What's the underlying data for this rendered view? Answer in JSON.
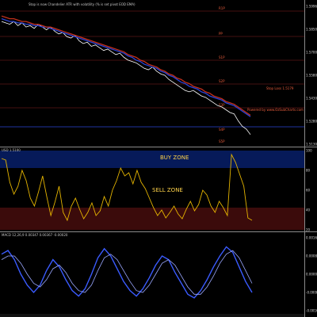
{
  "colors": {
    "background": "#000000",
    "price_black_line": "#ffffff",
    "ema_blue": "#2b44d6",
    "ema_red": "#c2301c",
    "osc_line": "#e3b300",
    "buy_zone_fill": "#061a59",
    "sell_zone_fill": "#3b0b0b",
    "pivot_line": "#8b1c1c",
    "pivot_text": "#e85c3c",
    "stop_text": "#e85c3c"
  },
  "price_pane": {
    "header_text": "Stop is now Chandelier ATR with volatility (% is set pivot EOD EMA)",
    "pivot_labels": [
      "R1P",
      "PP",
      "S1P",
      "S2P",
      "S3P",
      "S4P",
      "S5P"
    ],
    "stop_label": "Stop Loss 1.5179",
    "powered_label": "Powered by www.OzSubCharts.com",
    "y_ticks": [
      "1.5996",
      "1.5850",
      "1.5700",
      "1.5580",
      "1.5430",
      "1.5280",
      "1.5130"
    ]
  },
  "osc_pane": {
    "header_text": "USD 1.5100",
    "buy_zone_label": "BUY ZONE",
    "sell_zone_label": "SELL ZONE",
    "y_ticks": [
      "100",
      "80",
      "60",
      "40",
      "20"
    ]
  },
  "macd_pane": {
    "header_text": "MACD 12,26,9 0.00347 0.00367 -0.00020",
    "y_ticks": [
      "0.0016",
      "0.0008",
      "0.0000",
      "-0.0008",
      "-0.0016"
    ]
  },
  "chart_data": [
    {
      "type": "line",
      "pane": "price",
      "y_range": [
        1.505,
        1.605
      ],
      "series": [
        {
          "role": "price",
          "values": [
            1.594,
            1.593,
            1.592,
            1.594,
            1.591,
            1.593,
            1.59,
            1.591,
            1.589,
            1.592,
            1.59,
            1.588,
            1.59,
            1.587,
            1.585,
            1.586,
            1.583,
            1.582,
            1.584,
            1.58,
            1.578,
            1.579,
            1.576,
            1.577,
            1.575,
            1.573,
            1.574,
            1.572,
            1.57,
            1.571,
            1.568,
            1.566,
            1.565,
            1.564,
            1.562,
            1.56,
            1.559,
            1.561,
            1.558,
            1.556,
            1.555,
            1.552,
            1.55,
            1.548,
            1.546,
            1.544,
            1.543,
            1.544,
            1.542,
            1.54,
            1.539,
            1.537,
            1.535,
            1.533,
            1.532,
            1.53,
            1.528,
            1.527,
            1.522,
            1.518,
            1.516,
            1.512
          ]
        },
        {
          "role": "moving-average-blue",
          "values": [
            1.596,
            1.595,
            1.594,
            1.594,
            1.593,
            1.593,
            1.592,
            1.592,
            1.591,
            1.591,
            1.59,
            1.59,
            1.589,
            1.588,
            1.587,
            1.586,
            1.585,
            1.584,
            1.583,
            1.582,
            1.581,
            1.58,
            1.579,
            1.578,
            1.577,
            1.576,
            1.575,
            1.574,
            1.573,
            1.572,
            1.571,
            1.569,
            1.568,
            1.566,
            1.565,
            1.563,
            1.562,
            1.561,
            1.56,
            1.558,
            1.557,
            1.555,
            1.554,
            1.552,
            1.55,
            1.549,
            1.547,
            1.546,
            1.545,
            1.543,
            1.542,
            1.54,
            1.539,
            1.538,
            1.537,
            1.535,
            1.534,
            1.533,
            1.531,
            1.529,
            1.527,
            1.525
          ]
        },
        {
          "role": "moving-average-red",
          "values": [
            1.598,
            1.597,
            1.596,
            1.596,
            1.595,
            1.594,
            1.594,
            1.593,
            1.592,
            1.592,
            1.591,
            1.59,
            1.59,
            1.589,
            1.588,
            1.587,
            1.586,
            1.585,
            1.584,
            1.583,
            1.582,
            1.581,
            1.58,
            1.579,
            1.578,
            1.577,
            1.576,
            1.575,
            1.574,
            1.573,
            1.572,
            1.57,
            1.569,
            1.568,
            1.566,
            1.565,
            1.563,
            1.562,
            1.561,
            1.559,
            1.558,
            1.556,
            1.555,
            1.553,
            1.552,
            1.55,
            1.549,
            1.547,
            1.546,
            1.545,
            1.543,
            1.542,
            1.54,
            1.539,
            1.538,
            1.536,
            1.535,
            1.534,
            1.532,
            1.53,
            1.528,
            1.526
          ]
        }
      ]
    },
    {
      "type": "line",
      "pane": "oscillator",
      "y_range": [
        0,
        100
      ],
      "values": [
        90,
        88,
        60,
        45,
        55,
        75,
        62,
        40,
        30,
        48,
        68,
        42,
        18,
        35,
        55,
        22,
        12,
        30,
        40,
        26,
        14,
        22,
        34,
        18,
        24,
        42,
        30,
        50,
        62,
        78,
        68,
        72,
        58,
        75,
        60,
        52,
        40,
        28,
        18,
        25,
        15,
        22,
        30,
        20,
        14,
        26,
        36,
        24,
        32,
        50,
        44,
        30,
        22,
        36,
        28,
        18,
        95,
        85,
        70,
        55,
        15,
        12
      ]
    },
    {
      "type": "line",
      "pane": "macd",
      "y_range": [
        -0.002,
        0.002
      ],
      "series": [
        {
          "role": "macd",
          "values": [
            0.0011,
            0.0013,
            0.0008,
            0.0,
            -0.0006,
            -0.001,
            -0.0006,
            0.0002,
            0.0008,
            0.0004,
            -0.0003,
            -0.0009,
            -0.0012,
            -0.0008,
            0.0,
            0.0009,
            0.0014,
            0.001,
            0.0003,
            -0.0004,
            -0.0009,
            -0.0012,
            -0.0008,
            -0.0002,
            0.0005,
            0.001,
            0.0008,
            0.0001,
            -0.0005,
            -0.0011,
            -0.0013,
            -0.0009,
            -0.0003,
            0.0004,
            0.001,
            0.0015,
            0.0012,
            0.0004,
            -0.0004,
            -0.001
          ]
        },
        {
          "role": "signal",
          "values": [
            0.0008,
            0.001,
            0.001,
            0.0006,
            0.0,
            -0.0005,
            -0.0007,
            -0.0003,
            0.0003,
            0.0005,
            0.0001,
            -0.0005,
            -0.0009,
            -0.001,
            -0.0006,
            0.0002,
            0.0009,
            0.0011,
            0.0008,
            0.0002,
            -0.0004,
            -0.0009,
            -0.001,
            -0.0006,
            0.0,
            0.0006,
            0.0008,
            0.0005,
            -0.0001,
            -0.0007,
            -0.0011,
            -0.0011,
            -0.0007,
            -0.0001,
            0.0006,
            0.0011,
            0.0013,
            0.0009,
            0.0002,
            -0.0005
          ]
        }
      ]
    }
  ]
}
